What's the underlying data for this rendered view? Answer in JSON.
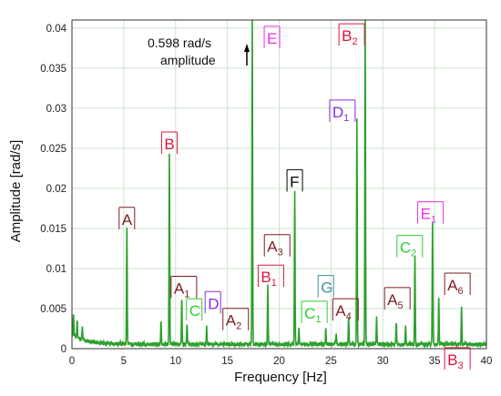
{
  "chart_data": {
    "type": "line",
    "title": "",
    "xlabel": "Frequency [Hz]",
    "ylabel": "Amplitude [rad/s]",
    "xlim": [
      0,
      40
    ],
    "ylim": [
      0,
      0.041
    ],
    "xticks": [
      0,
      5,
      10,
      15,
      20,
      25,
      30,
      35,
      40
    ],
    "yticks": [
      0,
      0.005,
      0.01,
      0.015,
      0.02,
      0.025,
      0.03,
      0.035,
      0.04
    ],
    "xtick_labels": [
      "0",
      "5",
      "10",
      "15",
      "20",
      "25",
      "30",
      "35",
      "40"
    ],
    "ytick_labels": [
      "0",
      "0.005",
      "0.01",
      "0.015",
      "0.02",
      "0.025",
      "0.03",
      "0.035",
      "0.04"
    ],
    "grid": true,
    "line_color": "#2ca02c",
    "peaks": [
      {
        "x": 0.15,
        "y": 0.0028
      },
      {
        "x": 0.5,
        "y": 0.0023
      },
      {
        "x": 1.0,
        "y": 0.0015
      },
      {
        "x": 5.3,
        "y": 0.0147
      },
      {
        "x": 8.6,
        "y": 0.0028
      },
      {
        "x": 9.4,
        "y": 0.024
      },
      {
        "x": 10.6,
        "y": 0.0057
      },
      {
        "x": 11.1,
        "y": 0.0026
      },
      {
        "x": 13.0,
        "y": 0.0022
      },
      {
        "x": 17.4,
        "y": 0.041
      },
      {
        "x": 18.9,
        "y": 0.0075
      },
      {
        "x": 21.5,
        "y": 0.0193
      },
      {
        "x": 21.9,
        "y": 0.0021
      },
      {
        "x": 24.5,
        "y": 0.0021
      },
      {
        "x": 25.5,
        "y": 0.0015
      },
      {
        "x": 26.7,
        "y": 0.0035
      },
      {
        "x": 27.5,
        "y": 0.028
      },
      {
        "x": 28.3,
        "y": 0.041
      },
      {
        "x": 29.4,
        "y": 0.0033
      },
      {
        "x": 31.3,
        "y": 0.0028
      },
      {
        "x": 32.2,
        "y": 0.0022
      },
      {
        "x": 33.1,
        "y": 0.0112
      },
      {
        "x": 34.8,
        "y": 0.0153
      },
      {
        "x": 35.4,
        "y": 0.0057
      },
      {
        "x": 37.6,
        "y": 0.0046
      }
    ],
    "annotations": [
      {
        "label": "A",
        "sub": "",
        "color": "#7b1c22",
        "x": 5.3,
        "y": 0.0149
      },
      {
        "label": "B",
        "sub": "",
        "color": "#dc143c",
        "x": 9.4,
        "y": 0.0243
      },
      {
        "label": "A",
        "sub": "1",
        "color": "#7b1c22",
        "x": 10.8,
        "y": 0.0063
      },
      {
        "label": "C",
        "sub": "",
        "color": "#32cd32",
        "x": 11.8,
        "y": 0.0035
      },
      {
        "label": "D",
        "sub": "",
        "color": "#8a2be2",
        "x": 13.6,
        "y": 0.0044
      },
      {
        "label": "A",
        "sub": "2",
        "color": "#7b1c22",
        "x": 15.8,
        "y": 0.0023
      },
      {
        "label": "E",
        "sub": "",
        "color": "#ee2ee8",
        "x": 19.3,
        "y": 0.0375
      },
      {
        "label": "A",
        "sub": "3",
        "color": "#7b1c22",
        "x": 19.8,
        "y": 0.0115
      },
      {
        "label": "B",
        "sub": "1",
        "color": "#dc143c",
        "x": 19.2,
        "y": 0.0077
      },
      {
        "label": "F",
        "sub": "",
        "color": "#000000",
        "x": 21.5,
        "y": 0.0196
      },
      {
        "label": "C",
        "sub": "1",
        "color": "#32cd32",
        "x": 23.4,
        "y": 0.0032
      },
      {
        "label": "G",
        "sub": "",
        "color": "#3f8f9f",
        "x": 24.5,
        "y": 0.0064
      },
      {
        "label": "A",
        "sub": "4",
        "color": "#7b1c22",
        "x": 26.4,
        "y": 0.0035
      },
      {
        "label": "B",
        "sub": "2",
        "color": "#dc143c",
        "x": 27.0,
        "y": 0.0378
      },
      {
        "label": "D",
        "sub": "1",
        "color": "#8a2be2",
        "x": 26.1,
        "y": 0.0283
      },
      {
        "label": "A",
        "sub": "5",
        "color": "#7b1c22",
        "x": 31.4,
        "y": 0.0049
      },
      {
        "label": "C",
        "sub": "2",
        "color": "#32cd32",
        "x": 32.6,
        "y": 0.0114
      },
      {
        "label": "E",
        "sub": "1",
        "color": "#ee2ee8",
        "x": 34.6,
        "y": 0.0156
      },
      {
        "label": "A",
        "sub": "6",
        "color": "#7b1c22",
        "x": 37.2,
        "y": 0.0067
      },
      {
        "label": "B",
        "sub": "3",
        "color": "#dc143c",
        "x": 37.2,
        "y": -0.0026
      }
    ],
    "note": {
      "line1": "0.598 rad/s",
      "line2": "amplitude"
    }
  }
}
